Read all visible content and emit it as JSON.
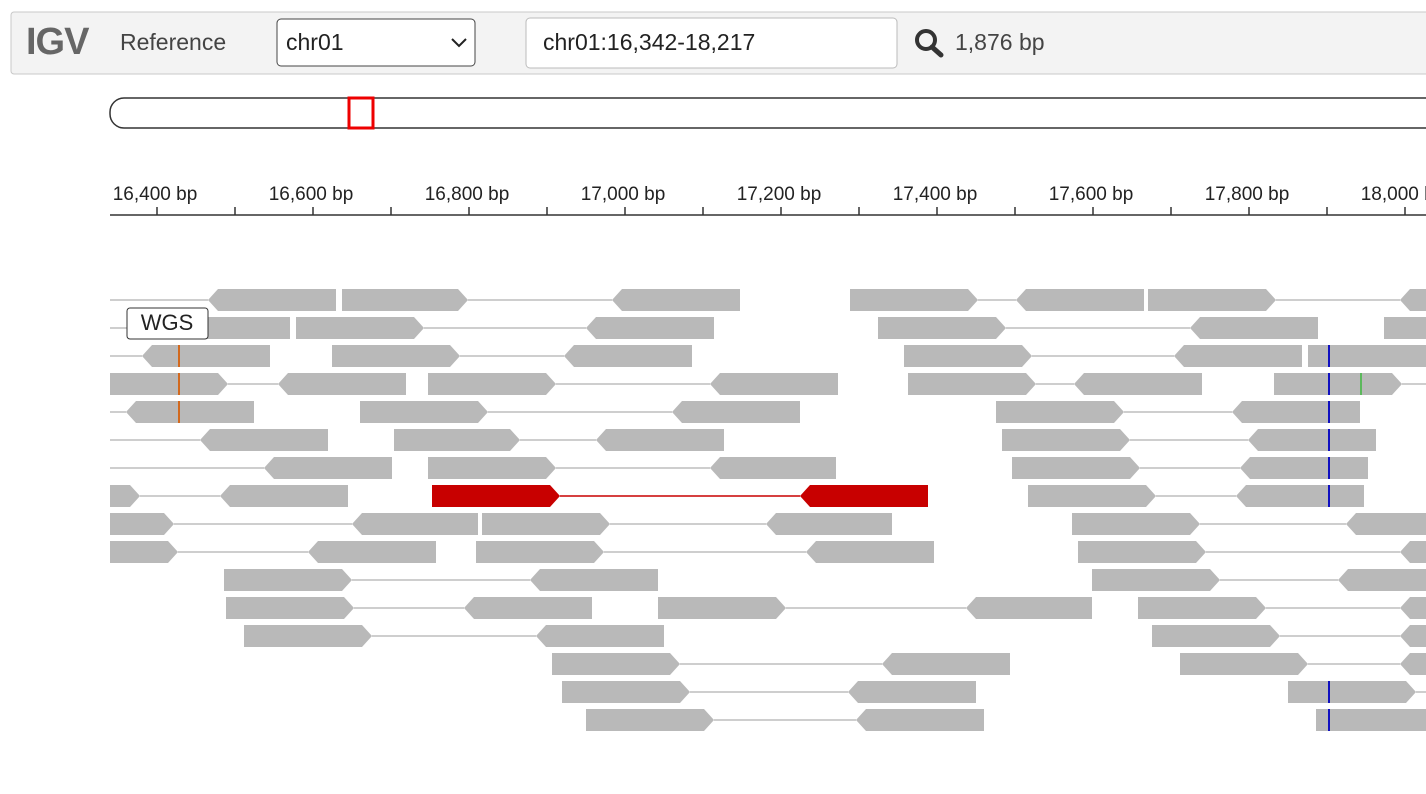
{
  "header": {
    "logo": "IGV",
    "genome_label": "Reference",
    "chromosome": "chr01",
    "locus": "chr01:16,342-18,217",
    "width": "1,876 bp"
  },
  "ruler": {
    "labels": [
      "16,400 bp",
      "16,600 bp",
      "16,800 bp",
      "17,000 bp",
      "17,200 bp",
      "17,400 bp",
      "17,600 bp",
      "17,800 bp",
      "18,000 bp"
    ]
  },
  "track": {
    "name": "WGS"
  }
}
